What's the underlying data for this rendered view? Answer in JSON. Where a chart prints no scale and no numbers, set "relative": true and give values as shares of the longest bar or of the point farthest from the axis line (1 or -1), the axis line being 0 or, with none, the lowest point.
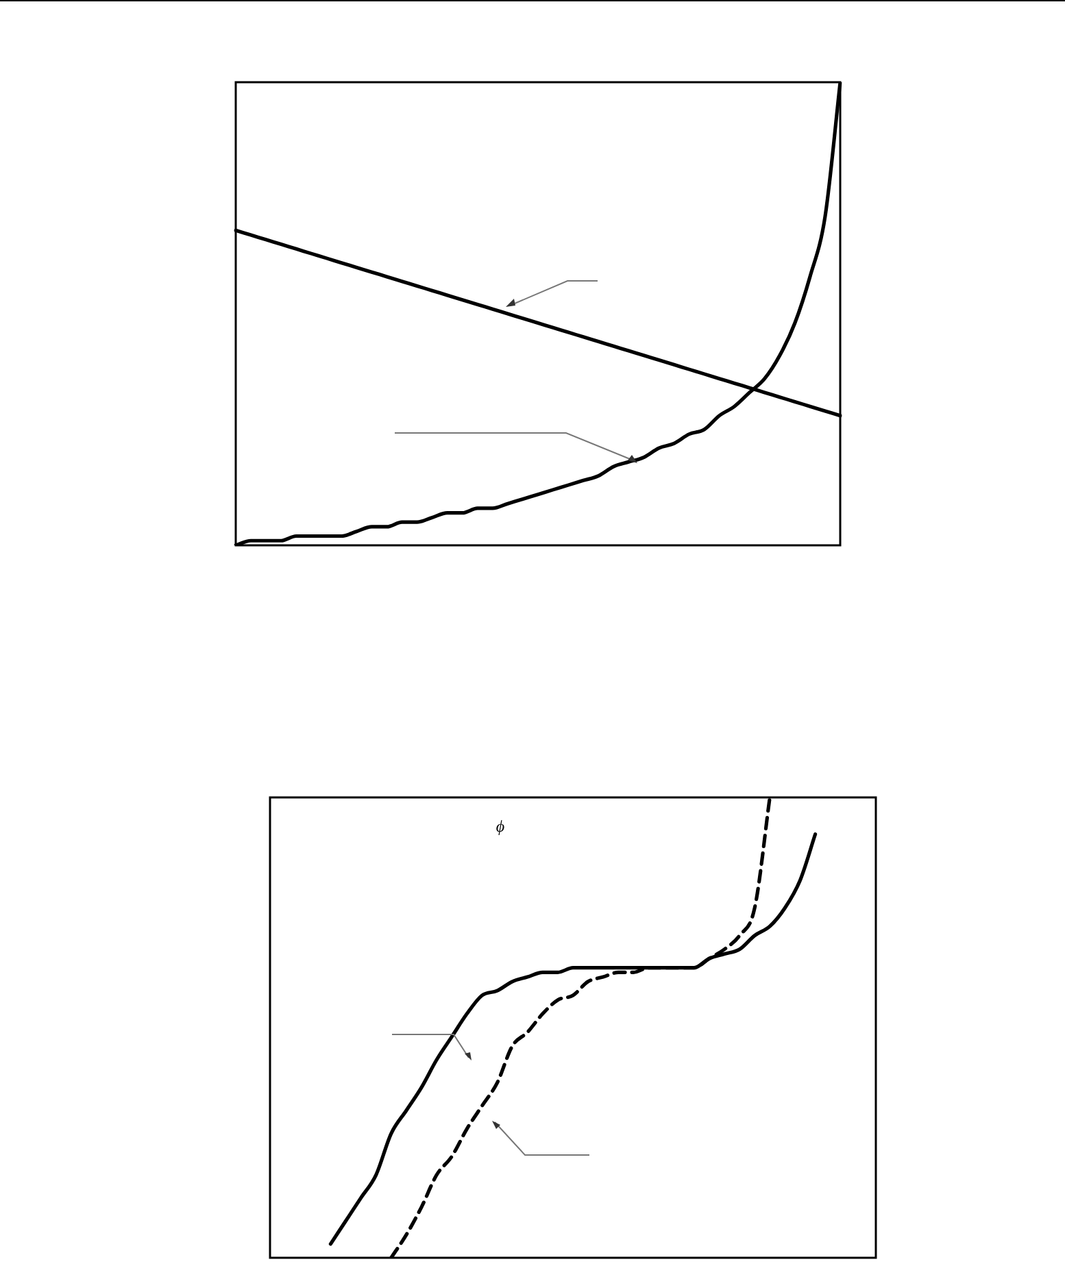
{
  "chart_data": [
    {
      "type": "line",
      "relative": true,
      "marker": "none",
      "categories": [
        null,
        null,
        null,
        null,
        null,
        null,
        null,
        null,
        null,
        null,
        null,
        null,
        null,
        null,
        null,
        null,
        null,
        null,
        null,
        null,
        null,
        null,
        null,
        null,
        null,
        null,
        null,
        null,
        null,
        null,
        null,
        null,
        null,
        null,
        null,
        null,
        null,
        null,
        null,
        null,
        null
      ],
      "series": [
        {
          "color": "#000000",
          "values": [
            0.68,
            0.67,
            0.66,
            0.65,
            0.64,
            0.63,
            0.62,
            0.61,
            0.6,
            0.59,
            0.58,
            0.57,
            0.56,
            0.55,
            0.54,
            0.53,
            0.52,
            0.51,
            0.5,
            0.49,
            0.48,
            0.47,
            0.46,
            0.45,
            0.44,
            0.43,
            0.42,
            0.41,
            0.4,
            0.39,
            0.38,
            0.37,
            0.36,
            0.35,
            0.34,
            0.33,
            0.32,
            0.31,
            0.3,
            0.29,
            0.28
          ]
        },
        {
          "color": "#000000",
          "values": [
            0.0,
            0.01,
            0.01,
            0.01,
            0.02,
            0.02,
            0.02,
            0.02,
            0.03,
            0.04,
            0.04,
            0.05,
            0.05,
            0.06,
            0.07,
            0.07,
            0.08,
            0.08,
            0.09,
            0.1,
            0.11,
            0.12,
            0.13,
            0.14,
            0.15,
            0.17,
            0.18,
            0.19,
            0.21,
            0.22,
            0.24,
            0.25,
            0.28,
            0.3,
            0.33,
            0.36,
            0.41,
            0.48,
            0.58,
            0.71,
            1
          ]
        }
      ]
    },
    {
      "type": "line",
      "relative": true,
      "marker": "none",
      "annotations": [
        "ϕ"
      ],
      "categories": [
        null,
        null,
        null,
        null,
        null,
        null,
        null,
        null,
        null,
        null,
        null,
        null,
        null,
        null,
        null,
        null,
        null,
        null,
        null,
        null,
        null,
        null,
        null,
        null,
        null,
        null,
        null,
        null,
        null,
        null,
        null,
        null,
        null,
        null,
        null,
        null,
        null,
        null,
        null,
        null,
        null
      ],
      "series": [
        {
          "color": "#000000",
          "line_style": "solid",
          "values": [
            null,
            null,
            null,
            null,
            0.03,
            0.08,
            0.13,
            0.18,
            0.27,
            0.32,
            0.37,
            0.43,
            0.48,
            0.53,
            0.57,
            0.58,
            0.6,
            0.61,
            0.62,
            0.62,
            0.63,
            0.63,
            0.63,
            0.63,
            0.63,
            0.63,
            0.63,
            0.63,
            0.63,
            0.65,
            0.66,
            0.67,
            0.7,
            0.72,
            0.76,
            0.82,
            0.92,
            null,
            null,
            null,
            null
          ]
        },
        {
          "color": "#000000",
          "line_style": "dashed",
          "values": [
            null,
            null,
            null,
            null,
            null,
            null,
            null,
            null,
            0,
            0.05,
            0.11,
            0.18,
            0.22,
            0.28,
            0.33,
            0.38,
            0.46,
            0.49,
            0.53,
            0.56,
            0.57,
            0.6,
            0.61,
            0.62,
            0.62,
            0.63,
            0.63,
            0.63,
            0.63,
            0.65,
            0.67,
            0.7,
            0.76,
            1,
            null,
            null,
            null,
            null,
            null,
            null,
            null
          ]
        }
      ]
    }
  ]
}
